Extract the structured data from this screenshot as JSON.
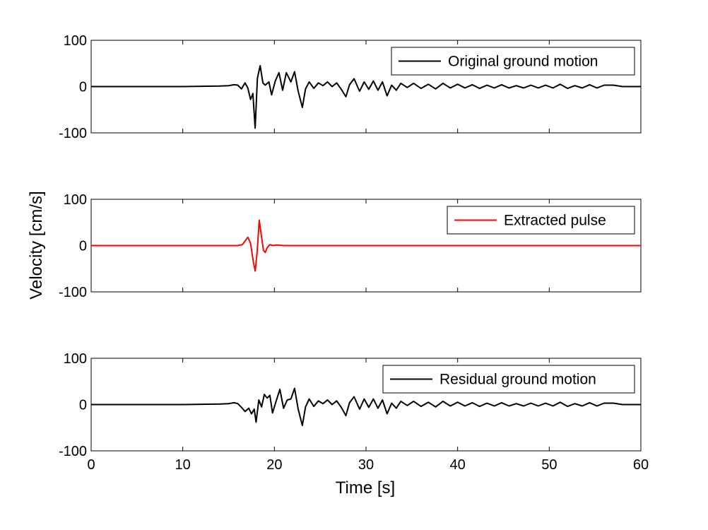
{
  "chart_data": {
    "type": "line",
    "xlabel": "Time [s]",
    "ylabel": "Velocity [cm/s]",
    "xlim": [
      0,
      60
    ],
    "ylim": [
      -100,
      100
    ],
    "xticks": [
      "0",
      "10",
      "20",
      "30",
      "40",
      "50",
      "60"
    ],
    "yticks": [
      "100",
      "0",
      "-100"
    ],
    "grid": false,
    "legend_position": "top-right",
    "panels": [
      {
        "legend": "Original ground motion",
        "color": "#000000",
        "x": [
          0,
          5,
          10,
          14,
          15,
          15.6,
          16,
          16.4,
          16.8,
          17.1,
          17.4,
          17.65,
          17.9,
          18.15,
          18.45,
          18.75,
          19.0,
          19.4,
          19.7,
          20.1,
          20.5,
          20.9,
          21.3,
          21.8,
          22.2,
          22.6,
          23.05,
          23.4,
          23.8,
          24.3,
          24.8,
          25.3,
          25.8,
          26.3,
          26.8,
          27.3,
          27.8,
          28.2,
          28.7,
          29.3,
          29.8,
          30.3,
          30.8,
          31.3,
          31.8,
          32.3,
          32.8,
          33.3,
          33.8,
          34.5,
          35.2,
          36,
          36.8,
          37.6,
          38.4,
          39.2,
          40,
          40.8,
          41.6,
          42.4,
          43.2,
          44,
          44.8,
          45.6,
          46.4,
          47.2,
          48,
          48.8,
          49.6,
          50.4,
          51.2,
          52,
          52.8,
          53.6,
          54.4,
          55.2,
          56,
          57,
          58,
          60
        ],
        "y": [
          0,
          0,
          0,
          1,
          2,
          4,
          3,
          -5,
          8,
          -3,
          -28,
          -15,
          -90,
          18,
          45,
          8,
          3,
          10,
          -18,
          12,
          30,
          -8,
          30,
          10,
          32,
          -10,
          -45,
          -5,
          10,
          -4,
          8,
          2,
          10,
          0,
          8,
          -6,
          -22,
          4,
          17,
          -10,
          10,
          -6,
          12,
          -8,
          10,
          -20,
          3,
          -8,
          7,
          -2,
          7,
          -4,
          5,
          -5,
          7,
          -3,
          5,
          -3,
          4,
          -4,
          3,
          -3,
          4,
          -3,
          2,
          -3,
          3,
          -3,
          3,
          -3,
          5,
          -4,
          2,
          -3,
          4,
          -3,
          3,
          3,
          0,
          0
        ]
      },
      {
        "legend": "Extracted pulse",
        "color": "#ff0000",
        "x": [
          0,
          5,
          10,
          14,
          15,
          15.5,
          16,
          16.5,
          16.8,
          17.1,
          17.4,
          17.7,
          17.9,
          18.1,
          18.35,
          18.6,
          18.8,
          19.0,
          19.2,
          19.5,
          19.8,
          20.2,
          21,
          22,
          30,
          40,
          50,
          60
        ],
        "y": [
          0,
          0,
          0,
          0,
          0,
          0,
          0,
          2,
          10,
          18,
          5,
          -35,
          -55,
          -18,
          55,
          18,
          -10,
          -15,
          -5,
          2,
          0,
          1,
          0,
          0,
          0,
          0,
          0,
          0
        ]
      },
      {
        "legend": "Residual ground motion",
        "color": "#000000",
        "x": [
          0,
          5,
          10,
          14,
          15,
          15.6,
          16,
          16.4,
          16.8,
          17.2,
          17.5,
          17.8,
          18.0,
          18.3,
          18.6,
          18.9,
          19.2,
          19.5,
          19.8,
          20.2,
          20.6,
          21.0,
          21.4,
          21.8,
          22.2,
          22.6,
          23.05,
          23.4,
          23.8,
          24.3,
          24.8,
          25.3,
          25.8,
          26.3,
          26.8,
          27.3,
          27.8,
          28.2,
          28.7,
          29.3,
          29.8,
          30.3,
          30.8,
          31.3,
          31.8,
          32.3,
          32.8,
          33.3,
          33.8,
          34.5,
          35.2,
          36,
          36.8,
          37.6,
          38.4,
          39.2,
          40,
          40.8,
          41.6,
          42.4,
          43.2,
          44,
          44.8,
          45.6,
          46.4,
          47.2,
          48,
          48.8,
          49.6,
          50.4,
          51.2,
          52,
          52.8,
          53.6,
          54.4,
          55.2,
          56,
          57,
          58,
          60
        ],
        "y": [
          0,
          0,
          0,
          1,
          2,
          4,
          2,
          -6,
          -15,
          -8,
          -20,
          -10,
          -38,
          10,
          -5,
          22,
          14,
          20,
          -18,
          8,
          33,
          -8,
          10,
          12,
          35,
          -10,
          -45,
          -5,
          12,
          -4,
          8,
          2,
          10,
          0,
          8,
          -6,
          -24,
          4,
          17,
          -10,
          12,
          -6,
          12,
          -8,
          10,
          -20,
          3,
          -8,
          7,
          -2,
          7,
          -4,
          5,
          -5,
          7,
          -3,
          5,
          -3,
          4,
          -4,
          3,
          -3,
          4,
          -3,
          2,
          -3,
          3,
          -3,
          3,
          -3,
          5,
          -4,
          2,
          -3,
          4,
          -3,
          3,
          3,
          0,
          0
        ]
      }
    ]
  }
}
